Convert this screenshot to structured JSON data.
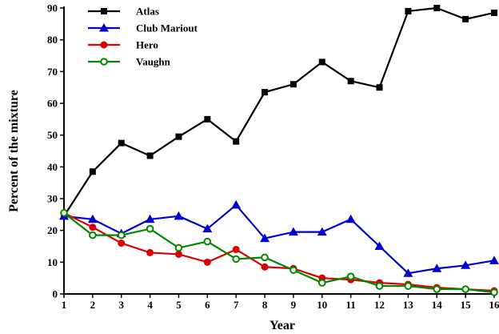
{
  "chart_data": {
    "type": "line",
    "title": "",
    "xlabel": "Year",
    "ylabel": "Percent of the mixture",
    "xlim": [
      1,
      16
    ],
    "ylim": [
      0,
      90
    ],
    "x": [
      1,
      2,
      3,
      4,
      5,
      6,
      7,
      8,
      9,
      10,
      11,
      12,
      13,
      14,
      15,
      16
    ],
    "x_tick_labels": [
      "1",
      "2",
      "3",
      "4",
      "5",
      "6",
      "7",
      "8",
      "9",
      "10",
      "11",
      "12",
      "13",
      "14",
      "15",
      "16"
    ],
    "y_tick_labels": [
      "0",
      "10",
      "20",
      "30",
      "40",
      "50",
      "60",
      "70",
      "80",
      "90"
    ],
    "grid": false,
    "legend_position": "top-left",
    "series": [
      {
        "name": "Atlas",
        "color": "#000000",
        "marker": "square",
        "values": [
          24.5,
          38.5,
          47.5,
          43.5,
          49.5,
          55,
          48,
          63.5,
          66,
          73,
          67,
          65,
          89,
          90,
          86.5,
          88.5
        ]
      },
      {
        "name": "Club Mariout",
        "color": "#0000cc",
        "marker": "triangle",
        "values": [
          24.5,
          23.5,
          19,
          23.5,
          24.5,
          20.5,
          28,
          17.5,
          19.5,
          19.5,
          23.5,
          15,
          6.5,
          8,
          9,
          10.5
        ]
      },
      {
        "name": "Hero",
        "color": "#dd0000",
        "marker": "circle",
        "values": [
          25.5,
          21,
          16,
          13,
          12.5,
          10,
          14,
          8.5,
          8,
          5,
          4.5,
          3.5,
          3,
          2,
          1.5,
          1
        ]
      },
      {
        "name": "Vaughn",
        "color": "#008800",
        "marker": "open-circle",
        "values": [
          25.5,
          18.5,
          18.5,
          20.5,
          14.5,
          16.5,
          11,
          11.5,
          7.5,
          3.5,
          5.5,
          2.5,
          2.5,
          1.5,
          1.5,
          0.5
        ]
      }
    ]
  }
}
